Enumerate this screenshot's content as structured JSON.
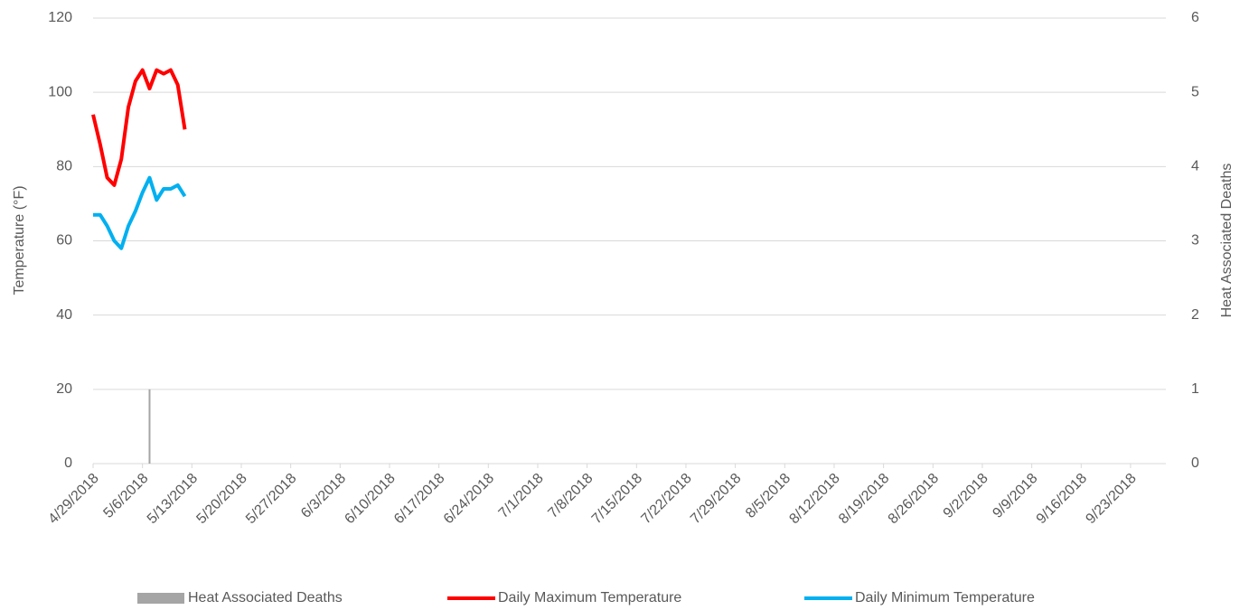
{
  "chart_data": {
    "type": "line",
    "y_label": "Temperature (°F)",
    "y2_label": "Heat Associated Deaths",
    "x": [
      "4/29/2018",
      "4/30/2018",
      "5/1/2018",
      "5/2/2018",
      "5/3/2018",
      "5/4/2018",
      "5/5/2018",
      "5/6/2018",
      "5/7/2018",
      "5/8/2018",
      "5/9/2018",
      "5/10/2018",
      "5/11/2018",
      "5/12/2018"
    ],
    "xlim": [
      "4/29/2018",
      "9/28/2018"
    ],
    "xticks": [
      "4/29/2018",
      "5/6/2018",
      "5/13/2018",
      "5/20/2018",
      "5/27/2018",
      "6/3/2018",
      "6/10/2018",
      "6/17/2018",
      "6/24/2018",
      "7/1/2018",
      "7/8/2018",
      "7/15/2018",
      "7/22/2018",
      "7/29/2018",
      "8/5/2018",
      "8/12/2018",
      "8/19/2018",
      "8/26/2018",
      "9/2/2018",
      "9/9/2018",
      "9/16/2018",
      "9/23/2018"
    ],
    "ylim": [
      0,
      120
    ],
    "yticks": [
      0,
      20,
      40,
      60,
      80,
      100,
      120
    ],
    "y2lim": [
      0,
      6
    ],
    "y2ticks": [
      0,
      1,
      2,
      3,
      4,
      5,
      6
    ],
    "grid": true,
    "legend": "bottom",
    "series": [
      {
        "name": "Heat Associated Deaths",
        "type": "bar",
        "axis": "y2",
        "color": "#a5a5a5",
        "values": [
          0,
          0,
          0,
          0,
          0,
          0,
          0,
          0,
          1,
          0,
          0,
          0,
          0,
          0
        ]
      },
      {
        "name": "Daily Maximum Temperature",
        "type": "line",
        "color": "#ff0000",
        "values": [
          94,
          86,
          77,
          75,
          82,
          96,
          103,
          106,
          101,
          106,
          105,
          106,
          102,
          90
        ]
      },
      {
        "name": "Daily Minimum Temperature",
        "type": "line",
        "color": "#00b0f0",
        "values": [
          67,
          67,
          64,
          60,
          58,
          64,
          68,
          73,
          77,
          71,
          74,
          74,
          75,
          72
        ]
      }
    ]
  }
}
